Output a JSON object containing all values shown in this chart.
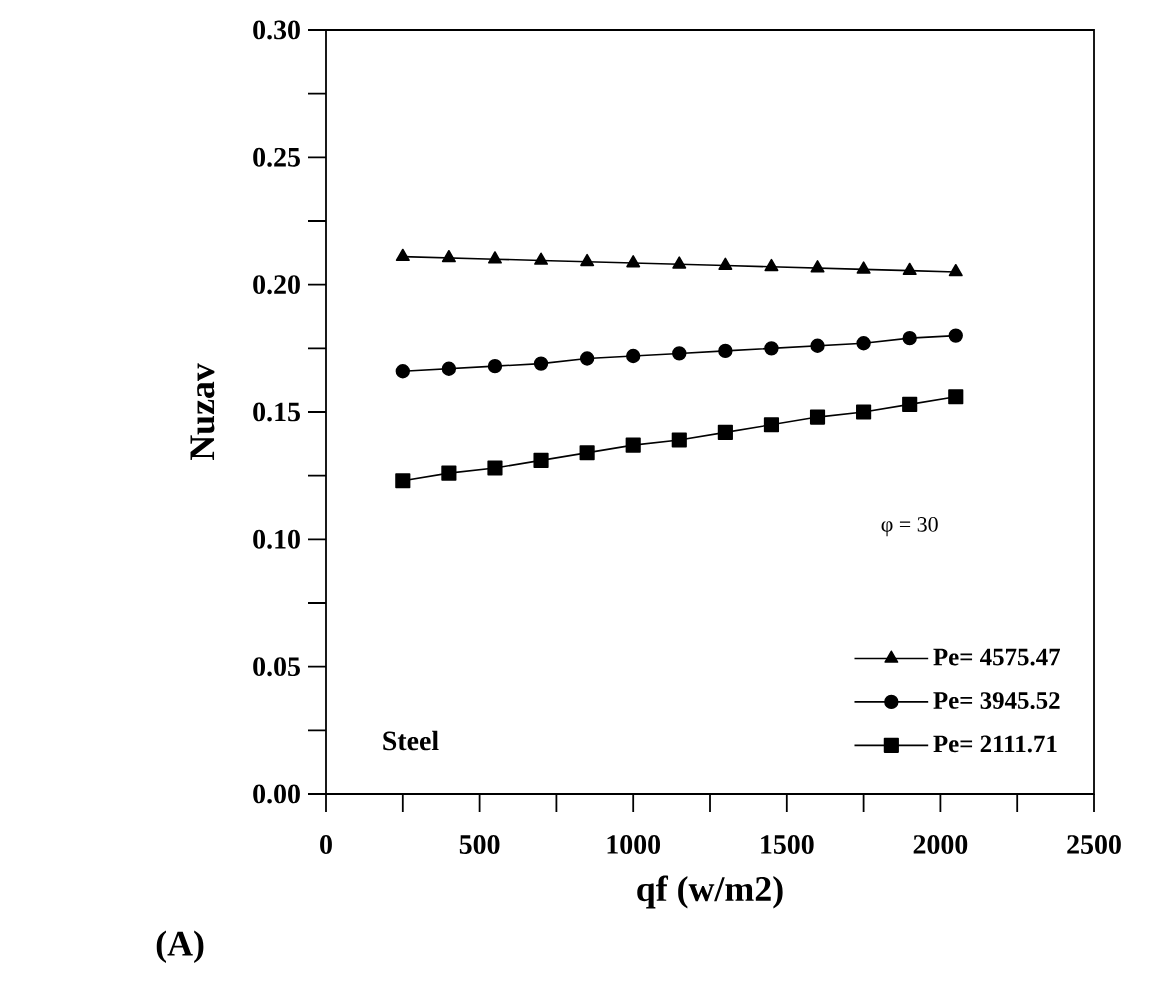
{
  "chart_data": {
    "type": "line",
    "xlabel": "qf (w/m2)",
    "ylabel": "Nuzav",
    "x": [
      250,
      400,
      550,
      700,
      850,
      1000,
      1150,
      1300,
      1450,
      1600,
      1750,
      1900,
      2050
    ],
    "series": [
      {
        "name": "Pe= 4575.47",
        "color": "#000000",
        "marker": "triangle",
        "values": [
          0.211,
          0.2105,
          0.21,
          0.2095,
          0.209,
          0.2085,
          0.208,
          0.2075,
          0.207,
          0.2065,
          0.206,
          0.2055,
          0.205
        ]
      },
      {
        "name": "Pe= 3945.52",
        "color": "#000000",
        "marker": "circle",
        "values": [
          0.166,
          0.167,
          0.168,
          0.169,
          0.171,
          0.172,
          0.173,
          0.174,
          0.175,
          0.176,
          0.177,
          0.179,
          0.18
        ]
      },
      {
        "name": "Pe= 2111.71",
        "color": "#000000",
        "marker": "square",
        "values": [
          0.123,
          0.126,
          0.128,
          0.131,
          0.134,
          0.137,
          0.139,
          0.142,
          0.145,
          0.148,
          0.15,
          0.153,
          0.156
        ]
      }
    ],
    "xlim": [
      0,
      2500
    ],
    "xticks": [
      0,
      {
        "value": 250,
        "label": null
      },
      500,
      {
        "value": 750,
        "label": null
      },
      1000,
      {
        "value": 1250,
        "label": null
      },
      1500,
      {
        "value": 1750,
        "label": null
      },
      2000,
      {
        "value": 2250,
        "label": null
      },
      2500
    ],
    "ylim": [
      0,
      0.3
    ],
    "yticks": [
      {
        "value": 0,
        "label": "0.00"
      },
      {
        "value": 0.025,
        "label": null
      },
      {
        "value": 0.05,
        "label": "0.05"
      },
      {
        "value": 0.075,
        "label": null
      },
      {
        "value": 0.1,
        "label": "0.10"
      },
      {
        "value": 0.125,
        "label": null
      },
      {
        "value": 0.15,
        "label": "0.15"
      },
      {
        "value": 0.175,
        "label": null
      },
      {
        "value": 0.2,
        "label": "0.20"
      },
      {
        "value": 0.225,
        "label": null
      },
      {
        "value": 0.25,
        "label": "0.25"
      },
      {
        "value": 0.275,
        "label": null
      },
      {
        "value": 0.3,
        "label": "0.30"
      }
    ],
    "legend": "bottom right",
    "grid": false,
    "line_style": "solid",
    "annotations": [
      "φ = 30",
      "Steel",
      "(A)"
    ]
  }
}
